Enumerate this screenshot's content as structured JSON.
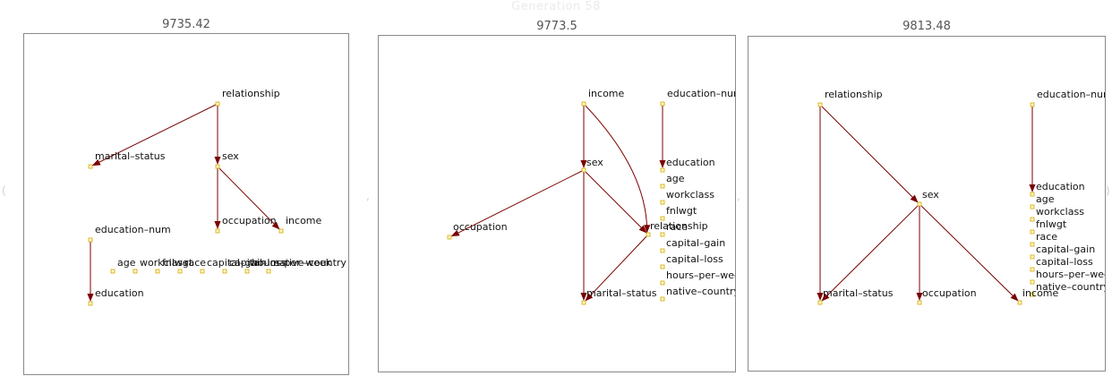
{
  "header": {
    "title": "Generation 58"
  },
  "panels": [
    {
      "score": "9735.42",
      "nodes": {
        "relationship": "relationship",
        "marital_status": "marital–status",
        "sex": "sex",
        "occupation": "occupation",
        "income": "income",
        "education_num": "education–num",
        "age": "age",
        "workclass": "workclass",
        "fnlwgt": "fnlwgt",
        "race": "race",
        "capital_gain": "capital–gain",
        "capital_loss": "capital–loss",
        "hours_per_week": "hours–per–week",
        "native_country": "native–country",
        "education": "education"
      },
      "edges": [
        [
          "relationship",
          "marital_status"
        ],
        [
          "relationship",
          "sex"
        ],
        [
          "sex",
          "occupation"
        ],
        [
          "sex",
          "income"
        ],
        [
          "education_num",
          "education"
        ]
      ]
    },
    {
      "score": "9773.5",
      "nodes": {
        "income": "income",
        "education_num": "education–num",
        "sex": "sex",
        "occupation": "occupation",
        "education": "education",
        "age": "age",
        "workclass": "workclass",
        "fnlwgt": "fnlwgt",
        "race": "race",
        "relationship": "relationship",
        "capital_gain": "capital–gain",
        "capital_loss": "capital–loss",
        "hours_per_week": "hours–per–week",
        "native_country": "native–country",
        "marital_status": "marital–status"
      },
      "edges": [
        [
          "income",
          "sex"
        ],
        [
          "income",
          "relationship"
        ],
        [
          "education_num",
          "education"
        ],
        [
          "sex",
          "occupation"
        ],
        [
          "sex",
          "marital_status"
        ],
        [
          "sex",
          "relationship"
        ],
        [
          "relationship",
          "marital_status"
        ]
      ]
    },
    {
      "score": "9813.48",
      "nodes": {
        "relationship": "relationship",
        "education_num": "education–num",
        "sex": "sex",
        "education": "education",
        "age": "age",
        "workclass": "workclass",
        "fnlwgt": "fnlwgt",
        "race": "race",
        "capital_gain": "capital–gain",
        "capital_loss": "capital–loss",
        "hours_per_week": "hours–per–week",
        "native_country": "native–country",
        "marital_status": "marital–status",
        "occupation": "occupation",
        "income": "income"
      },
      "edges": [
        [
          "relationship",
          "marital_status"
        ],
        [
          "relationship",
          "sex"
        ],
        [
          "education_num",
          "education"
        ],
        [
          "sex",
          "marital_status"
        ],
        [
          "sex",
          "occupation"
        ],
        [
          "sex",
          "income"
        ]
      ]
    }
  ],
  "colors": {
    "edge": "#7a0000",
    "node_fill": "#fff7c8",
    "node_stroke": "#d4a800",
    "frame": "#8a8a8a"
  }
}
